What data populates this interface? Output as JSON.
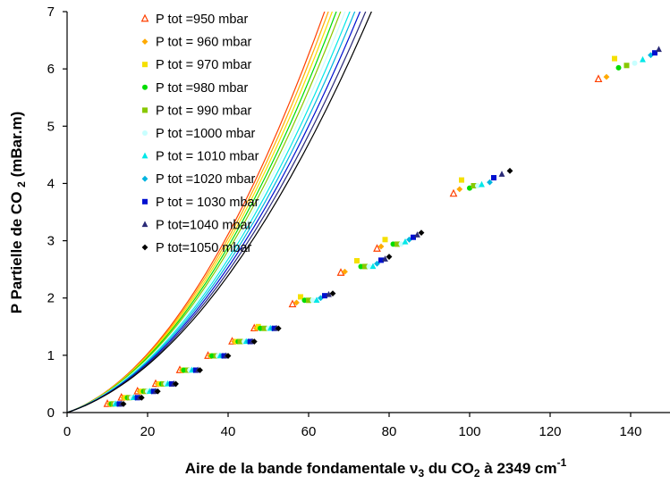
{
  "chart_data": {
    "type": "scatter",
    "title": "",
    "xlabel": {
      "part1": "Aire de la bande fondamentale ",
      "nu": "ν",
      "nu_sub": "3",
      "part2": " du CO",
      "co2_sub": "2",
      "part3": " à 2349 cm",
      "sup": "-1"
    },
    "ylabel": {
      "part1": "P Partielle de CO ",
      "sub": "2",
      "part2": " (mBar.m)"
    },
    "xlim": [
      0,
      150
    ],
    "ylim": [
      0,
      7
    ],
    "xticks": [
      0,
      20,
      40,
      60,
      80,
      100,
      120,
      140
    ],
    "yticks": [
      0,
      1,
      2,
      3,
      4,
      5,
      6,
      7
    ],
    "grid": false,
    "legend_position": "top-left",
    "series": [
      {
        "name": "P tot =950 mbar",
        "color": "#ff4000",
        "marker": "triangle-outline",
        "fit": [
          0.0132,
          0.025
        ],
        "x": [
          10,
          13.5,
          17.5,
          22,
          28,
          35,
          41,
          46.5,
          56,
          68,
          77,
          96,
          132
        ],
        "y": [
          0.15,
          0.26,
          0.37,
          0.5,
          0.74,
          0.99,
          1.24,
          1.47,
          1.89,
          2.44,
          2.86,
          3.82,
          5.82
        ]
      },
      {
        "name": "P tot = 960 mbar",
        "color": "#ffaa00",
        "marker": "diamond",
        "fit": [
          0.0128,
          0.0248
        ],
        "x": [
          10.5,
          14,
          18,
          22.5,
          28.5,
          35.5,
          41.5,
          47,
          57,
          69,
          78,
          97.5,
          134
        ],
        "y": [
          0.15,
          0.26,
          0.37,
          0.5,
          0.74,
          0.99,
          1.24,
          1.47,
          1.92,
          2.46,
          2.9,
          3.9,
          5.86
        ]
      },
      {
        "name": "P tot = 970 mbar",
        "color": "#f5e000",
        "marker": "square",
        "fit": [
          0.0124,
          0.0246
        ],
        "x": [
          11,
          14.5,
          18.5,
          23,
          29,
          36,
          42,
          47.5,
          58,
          72,
          79,
          98,
          136
        ],
        "y": [
          0.15,
          0.26,
          0.37,
          0.5,
          0.74,
          0.99,
          1.24,
          1.5,
          2.02,
          2.65,
          3.02,
          4.06,
          6.18
        ]
      },
      {
        "name": "P tot =980 mbar",
        "color": "#00dd00",
        "marker": "circle",
        "fit": [
          0.012,
          0.0244
        ],
        "x": [
          11,
          15,
          19,
          23.5,
          29,
          36,
          42.5,
          48,
          59,
          73,
          81,
          100,
          137
        ],
        "y": [
          0.15,
          0.26,
          0.37,
          0.5,
          0.74,
          0.99,
          1.24,
          1.47,
          1.96,
          2.55,
          2.94,
          3.92,
          6.02
        ]
      },
      {
        "name": "P tot = 990 mbar",
        "color": "#88c800",
        "marker": "square",
        "fit": [
          0.0116,
          0.0242
        ],
        "x": [
          11.5,
          15.5,
          19.5,
          24,
          30,
          37,
          43,
          49,
          60,
          74,
          82,
          101,
          139
        ],
        "y": [
          0.15,
          0.26,
          0.37,
          0.5,
          0.74,
          0.99,
          1.24,
          1.47,
          1.96,
          2.55,
          2.94,
          3.96,
          6.06
        ]
      },
      {
        "name": "P tot =1000 mbar",
        "color": "#c8ffff",
        "marker": "circle",
        "fit": [
          0.0112,
          0.024
        ],
        "x": [
          12,
          16,
          20,
          24.5,
          30.5,
          37.5,
          44,
          50,
          61,
          75,
          83,
          102,
          141
        ],
        "y": [
          0.15,
          0.26,
          0.37,
          0.5,
          0.74,
          0.99,
          1.24,
          1.47,
          1.96,
          2.55,
          2.94,
          3.96,
          6.1
        ]
      },
      {
        "name": "P tot = 1010 mbar",
        "color": "#00e8e8",
        "marker": "triangle",
        "fit": [
          0.0108,
          0.0238
        ],
        "x": [
          12,
          16.5,
          20.5,
          25,
          31,
          38,
          44.5,
          50.5,
          62,
          76,
          84,
          103,
          143
        ],
        "y": [
          0.15,
          0.26,
          0.37,
          0.5,
          0.74,
          0.99,
          1.24,
          1.47,
          1.96,
          2.55,
          2.98,
          3.98,
          6.16
        ]
      },
      {
        "name": "P tot =1020 mbar",
        "color": "#00b4e0",
        "marker": "diamond",
        "fit": [
          0.0104,
          0.0236
        ],
        "x": [
          12.5,
          17,
          21,
          25.5,
          31.5,
          38.5,
          45,
          51,
          63,
          77,
          85,
          105,
          145
        ],
        "y": [
          0.15,
          0.26,
          0.37,
          0.5,
          0.74,
          0.99,
          1.24,
          1.47,
          2.0,
          2.6,
          3.02,
          4.02,
          6.24
        ]
      },
      {
        "name": "P tot = 1030 mbar",
        "color": "#0010d0",
        "marker": "square",
        "fit": [
          0.01,
          0.0234
        ],
        "x": [
          13,
          17.5,
          21.5,
          26,
          32,
          39,
          45.5,
          51.5,
          64,
          78,
          86,
          106,
          146
        ],
        "y": [
          0.15,
          0.26,
          0.37,
          0.5,
          0.74,
          0.99,
          1.24,
          1.47,
          2.04,
          2.66,
          3.06,
          4.1,
          6.28
        ]
      },
      {
        "name": "P tot=1040 mbar",
        "color": "#2a2a78",
        "marker": "triangle",
        "fit": [
          0.0096,
          0.0232
        ],
        "x": [
          13.5,
          18,
          22,
          26.5,
          32.5,
          39.5,
          46,
          52,
          65,
          79,
          87,
          108,
          147
        ],
        "y": [
          0.15,
          0.26,
          0.37,
          0.5,
          0.74,
          0.99,
          1.24,
          1.47,
          2.06,
          2.68,
          3.1,
          4.16,
          6.34
        ]
      },
      {
        "name": "P tot=1050 mbar",
        "color": "#000000",
        "marker": "diamond",
        "fit": [
          0.0092,
          0.023
        ],
        "x": [
          14,
          18.5,
          22.5,
          27,
          33,
          40,
          46.5,
          52.5,
          66,
          80,
          88,
          110
        ],
        "y": [
          0.15,
          0.26,
          0.37,
          0.5,
          0.74,
          0.99,
          1.24,
          1.47,
          2.08,
          2.72,
          3.14,
          4.22
        ]
      }
    ]
  }
}
